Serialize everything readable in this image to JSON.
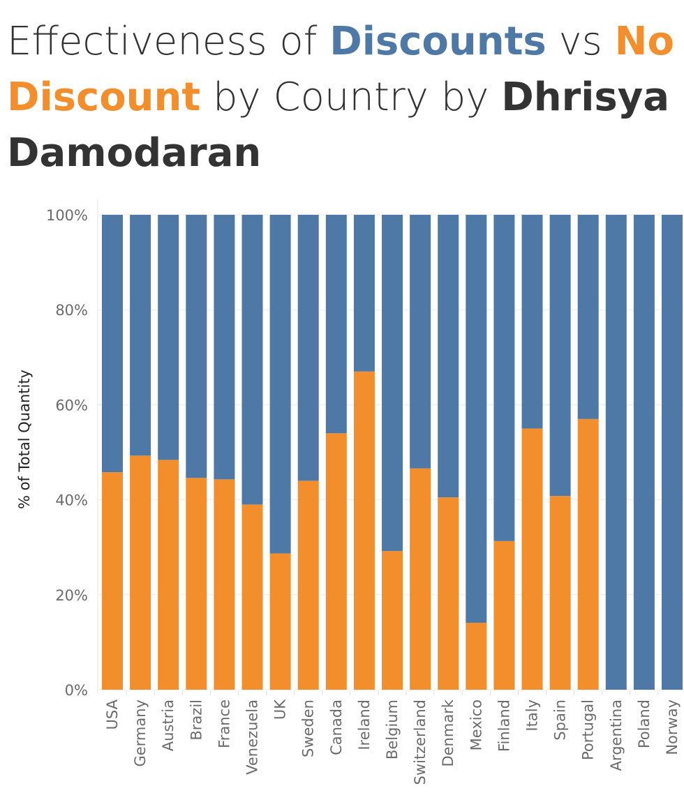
{
  "title": {
    "part1": "Effectiveness of ",
    "discounts": "Discounts",
    "part2": " vs ",
    "no_discount": "No Discount",
    "part3": " by Country by ",
    "author": "Dhrisya Damodaran"
  },
  "colors": {
    "discount": "#4e79a7",
    "no_discount": "#f28e2b",
    "text": "#333333",
    "grid": "#ececec"
  },
  "chart_data": {
    "type": "bar",
    "stacked": true,
    "ylabel": "% of Total Quantity",
    "xlabel": "",
    "ylim": [
      0,
      100
    ],
    "yticks": [
      "0%",
      "20%",
      "40%",
      "60%",
      "80%",
      "100%"
    ],
    "categories": [
      "USA",
      "Germany",
      "Austria",
      "Brazil",
      "France",
      "Venezuela",
      "UK",
      "Sweden",
      "Canada",
      "Ireland",
      "Belgium",
      "Switzerland",
      "Denmark",
      "Mexico",
      "Finland",
      "Italy",
      "Spain",
      "Portugal",
      "Argentina",
      "Poland",
      "Norway"
    ],
    "series": [
      {
        "values": [
          45.8,
          49.3,
          48.4,
          44.6,
          44.3,
          39.0,
          28.7,
          44.0,
          54.0,
          67.0,
          29.2,
          46.6,
          40.5,
          14.1,
          31.3,
          55.0,
          40.8,
          57.0,
          0,
          0,
          0
        ]
      },
      {
        "values": [
          54.2,
          50.7,
          51.6,
          55.4,
          55.7,
          61.0,
          71.3,
          56.0,
          46.0,
          33.0,
          70.8,
          53.4,
          59.5,
          85.9,
          68.7,
          45.0,
          59.2,
          43.0,
          100,
          100,
          100
        ]
      }
    ],
    "grid": true,
    "legend": "none"
  }
}
